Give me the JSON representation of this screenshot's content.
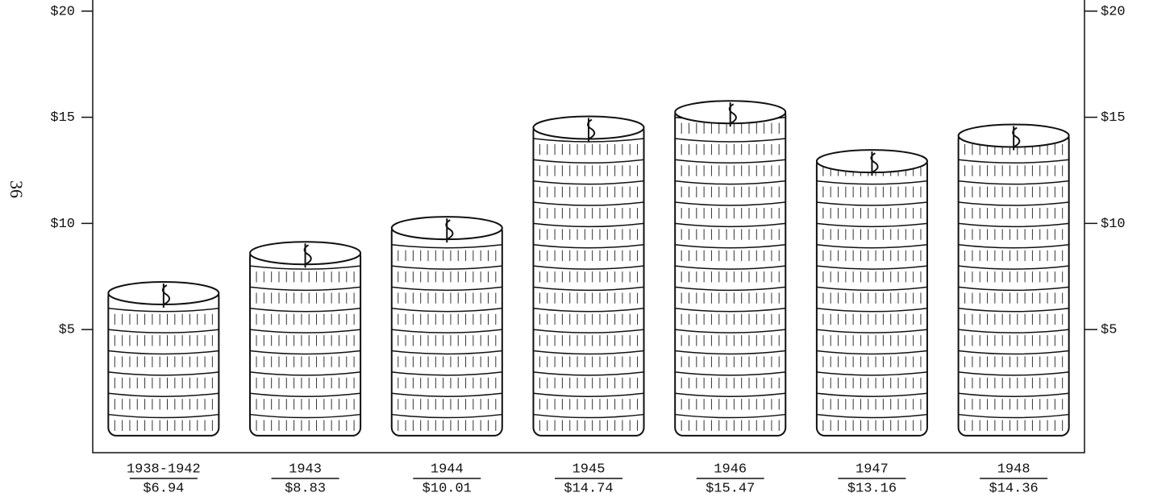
{
  "page_number": "36",
  "chart_data": {
    "type": "bar",
    "categories": [
      "1938-1942",
      "1943",
      "1944",
      "1945",
      "1946",
      "1947",
      "1948"
    ],
    "values": [
      6.94,
      8.83,
      10.01,
      14.74,
      15.47,
      13.16,
      14.36
    ],
    "value_labels": [
      "$6.94",
      "$8.83",
      "$10.01",
      "$14.74",
      "$15.47",
      "$13.16",
      "$14.36"
    ],
    "color": "#ffffff",
    "ylim": [
      -0.8,
      20.6
    ],
    "yticks": [
      {
        "value": 5,
        "label": "$5"
      },
      {
        "value": 10,
        "label": "$10"
      },
      {
        "value": 15,
        "label": "$15"
      },
      {
        "value": 20,
        "label": "$20"
      }
    ]
  }
}
